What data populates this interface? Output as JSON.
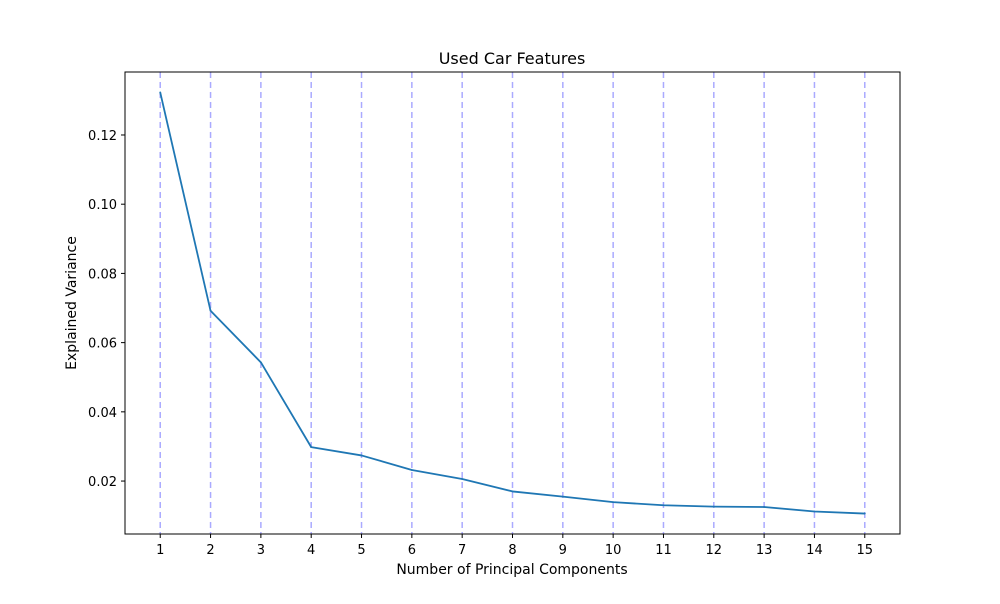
{
  "chart_data": {
    "type": "line",
    "title": "Used Car Features",
    "xlabel": "Number of Principal Components",
    "ylabel": "Explained Variance",
    "x": [
      1,
      2,
      3,
      4,
      5,
      6,
      7,
      8,
      9,
      10,
      11,
      12,
      13,
      14,
      15
    ],
    "series": [
      {
        "values": [
          0.1323,
          0.0692,
          0.0543,
          0.0298,
          0.0274,
          0.0232,
          0.0206,
          0.017,
          0.0155,
          0.0139,
          0.013,
          0.0126,
          0.0125,
          0.0112,
          0.0106
        ],
        "color": "#1f77b4"
      }
    ],
    "xlim": [
      0.3,
      15.7
    ],
    "ylim": [
      0.0047,
      0.1382
    ],
    "xticks": [
      "1",
      "2",
      "3",
      "4",
      "5",
      "6",
      "7",
      "8",
      "9",
      "10",
      "11",
      "12",
      "13",
      "14",
      "15"
    ],
    "yticks": [
      "0.02",
      "0.04",
      "0.06",
      "0.08",
      "0.10",
      "0.12"
    ],
    "ytick_values": [
      0.02,
      0.04,
      0.06,
      0.08,
      0.1,
      0.12
    ],
    "vertical_guides": {
      "positions": [
        1,
        2,
        3,
        4,
        5,
        6,
        7,
        8,
        9,
        10,
        11,
        12,
        13,
        14,
        15
      ],
      "color": "#aaaaff",
      "style": "dashed"
    },
    "grid": false,
    "legend": "none"
  }
}
